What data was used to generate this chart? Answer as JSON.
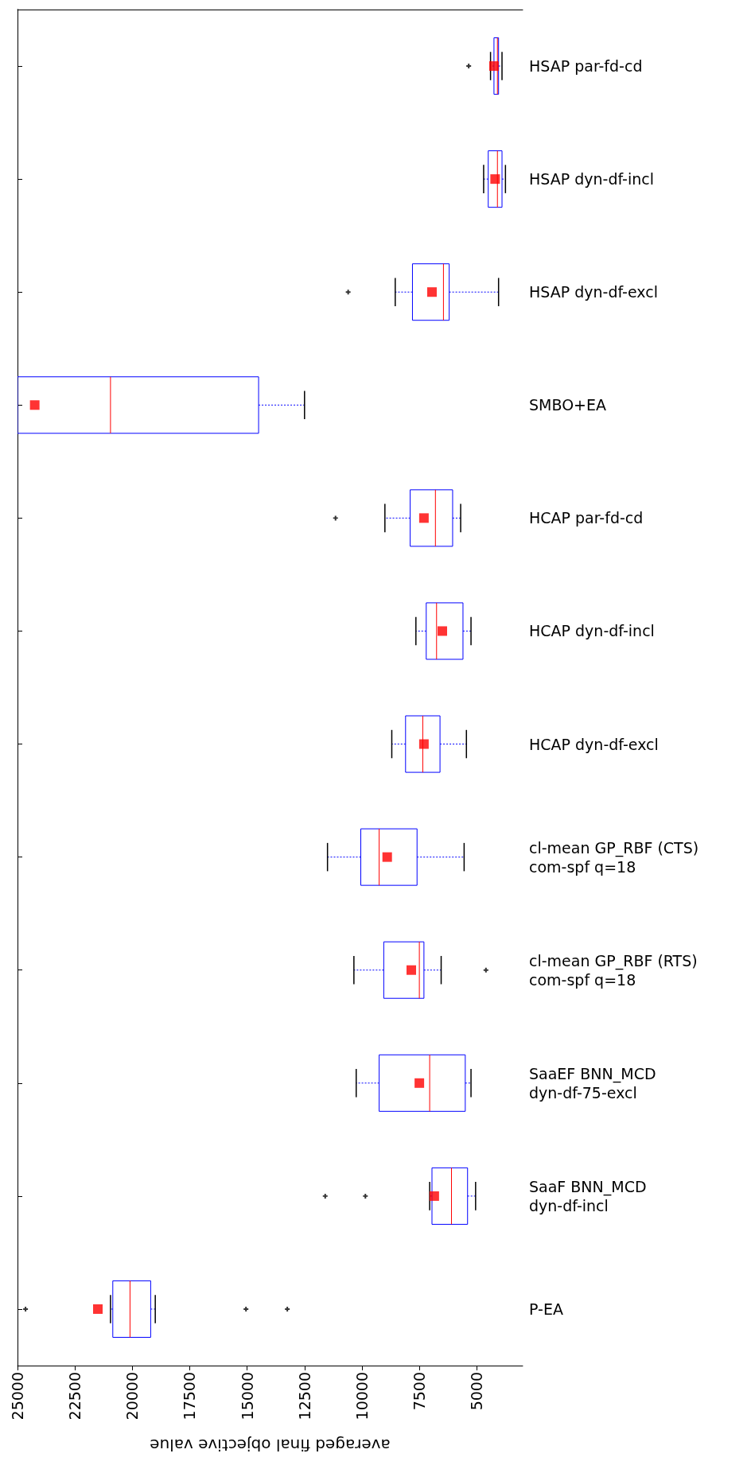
{
  "chart_data": {
    "type": "box",
    "orientation": "horizontal",
    "xlabel": "averaged final objective value",
    "categories": [
      "HSAP par-fd-cd",
      "HSAP dyn-df-incl",
      "HSAP dyn-df-excl",
      "SMBO+EA",
      "HCAP par-fd-cd",
      "HCAP dyn-df-incl",
      "HCAP dyn-df-excl",
      "cl-mean GP_RBF (CTS)\ncom-spf q=18",
      "cl-mean GP_RBF (RTS)\ncom-spf q=18",
      "SaaEF BNN_MCD\ndyn-df-75-excl",
      "SaaF BNN_MCD\ndyn-df-incl",
      "P-EA"
    ],
    "series": [
      {
        "color": "#0000ff",
        "boxes": [
          {
            "low": 3900,
            "q1": 4050,
            "median": 4100,
            "q3": 4250,
            "high": 4400,
            "mean": 4250,
            "outliers": [
              5350
            ]
          },
          {
            "low": 3750,
            "q1": 3900,
            "median": 4100,
            "q3": 4500,
            "high": 4700,
            "mean": 4200
          },
          {
            "low": 4050,
            "q1": 6200,
            "median": 6450,
            "q3": 7800,
            "high": 8550,
            "mean": 6950,
            "outliers": [
              10600
            ]
          },
          {
            "low": 12500,
            "q1": 14500,
            "median": 20950,
            "q3": 25000,
            "high": 25000,
            "mean": 24250
          },
          {
            "low": 5700,
            "q1": 6050,
            "median": 6800,
            "q3": 7900,
            "high": 9000,
            "mean": 7300,
            "outliers": [
              11150
            ]
          },
          {
            "low": 5250,
            "q1": 5600,
            "median": 6750,
            "q3": 7200,
            "high": 7650,
            "mean": 6500
          },
          {
            "low": 5450,
            "q1": 6600,
            "median": 7350,
            "q3": 8100,
            "high": 8700,
            "mean": 7300
          },
          {
            "low": 5550,
            "q1": 7600,
            "median": 9250,
            "q3": 10050,
            "high": 11500,
            "mean": 8900
          },
          {
            "low": 6550,
            "q1": 7300,
            "median": 7500,
            "q3": 9050,
            "high": 10350,
            "mean": 7850,
            "outliers": [
              4600
            ]
          },
          {
            "low": 5250,
            "q1": 5500,
            "median": 7050,
            "q3": 9250,
            "high": 10250,
            "mean": 7500
          },
          {
            "low": 5050,
            "q1": 5400,
            "median": 6100,
            "q3": 6950,
            "high": 7050,
            "mean": 6850,
            "outliers": [
              11600,
              9850
            ]
          },
          {
            "low": 19000,
            "q1": 19200,
            "median": 20100,
            "q3": 20850,
            "high": 20950,
            "mean": 21500,
            "outliers": [
              24650,
              15050,
              13250
            ]
          }
        ]
      }
    ],
    "xlim": [
      25000,
      3000
    ],
    "xticks": [
      25000,
      22500,
      20000,
      17500,
      15000,
      12500,
      10000,
      7500,
      5000
    ],
    "marker": "square",
    "grid": false
  }
}
